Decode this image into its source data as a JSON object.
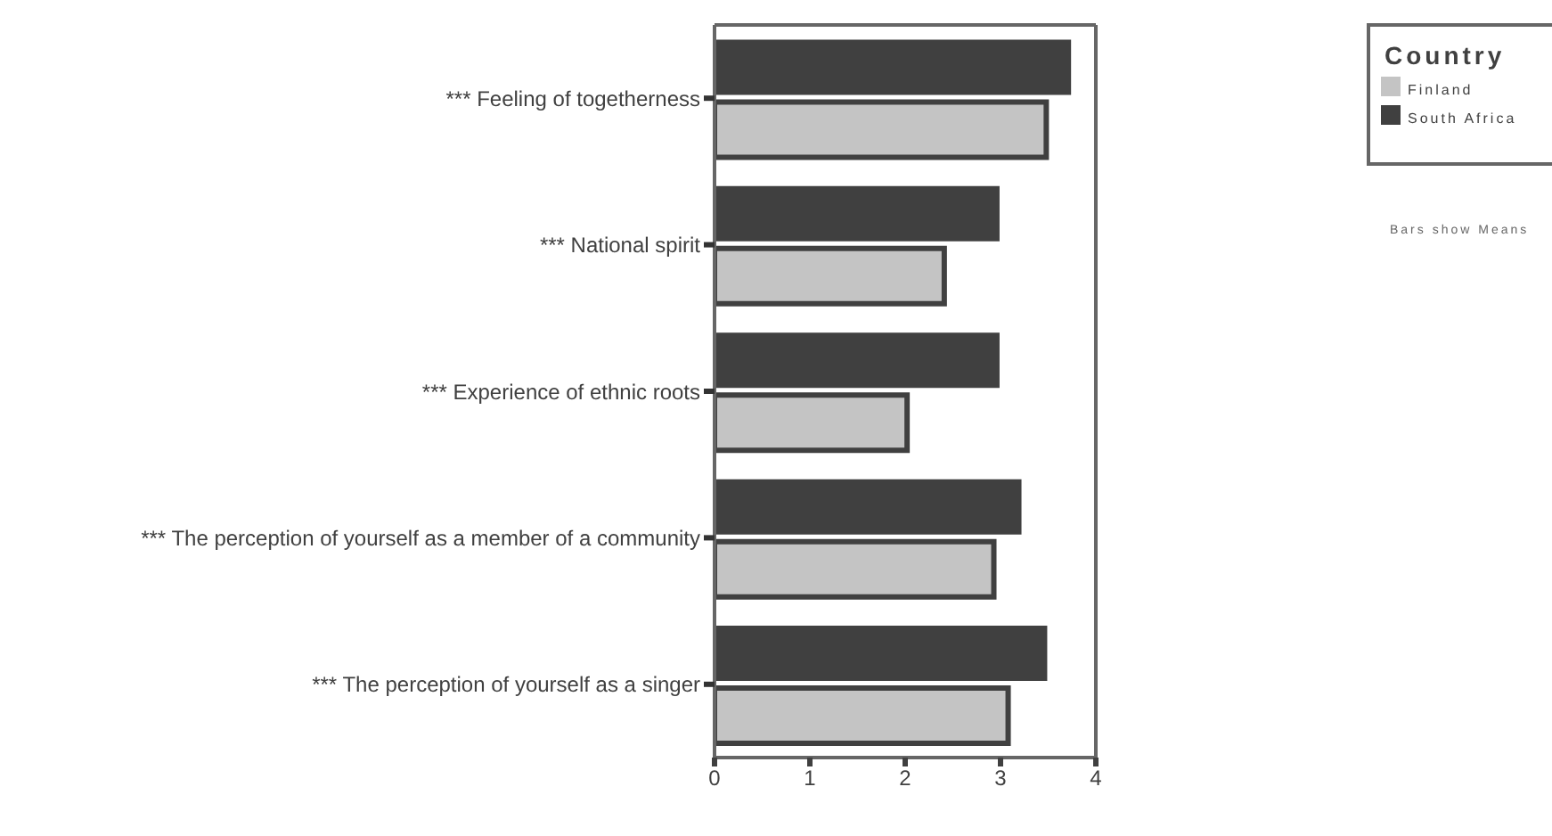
{
  "chart_data": {
    "type": "bar",
    "orientation": "horizontal",
    "categories": [
      "***   Feeling of togetherness",
      "***   National spirit",
      "***   Experience of ethnic roots",
      "***   The perception of yourself as a member of a community",
      "***   The perception of yourself as a singer"
    ],
    "series": [
      {
        "name": "Finland",
        "color": "#c4c4c4",
        "values": [
          3.48,
          2.41,
          2.02,
          2.93,
          3.08
        ]
      },
      {
        "name": "South Africa",
        "color": "#404040",
        "values": [
          3.74,
          2.99,
          2.99,
          3.22,
          3.49
        ]
      }
    ],
    "xlim": [
      0,
      4
    ],
    "xticks": [
      0,
      1,
      2,
      3,
      4
    ],
    "legend": "top right",
    "legend_title": "Country",
    "annotations": [
      "Bars show Means"
    ]
  }
}
